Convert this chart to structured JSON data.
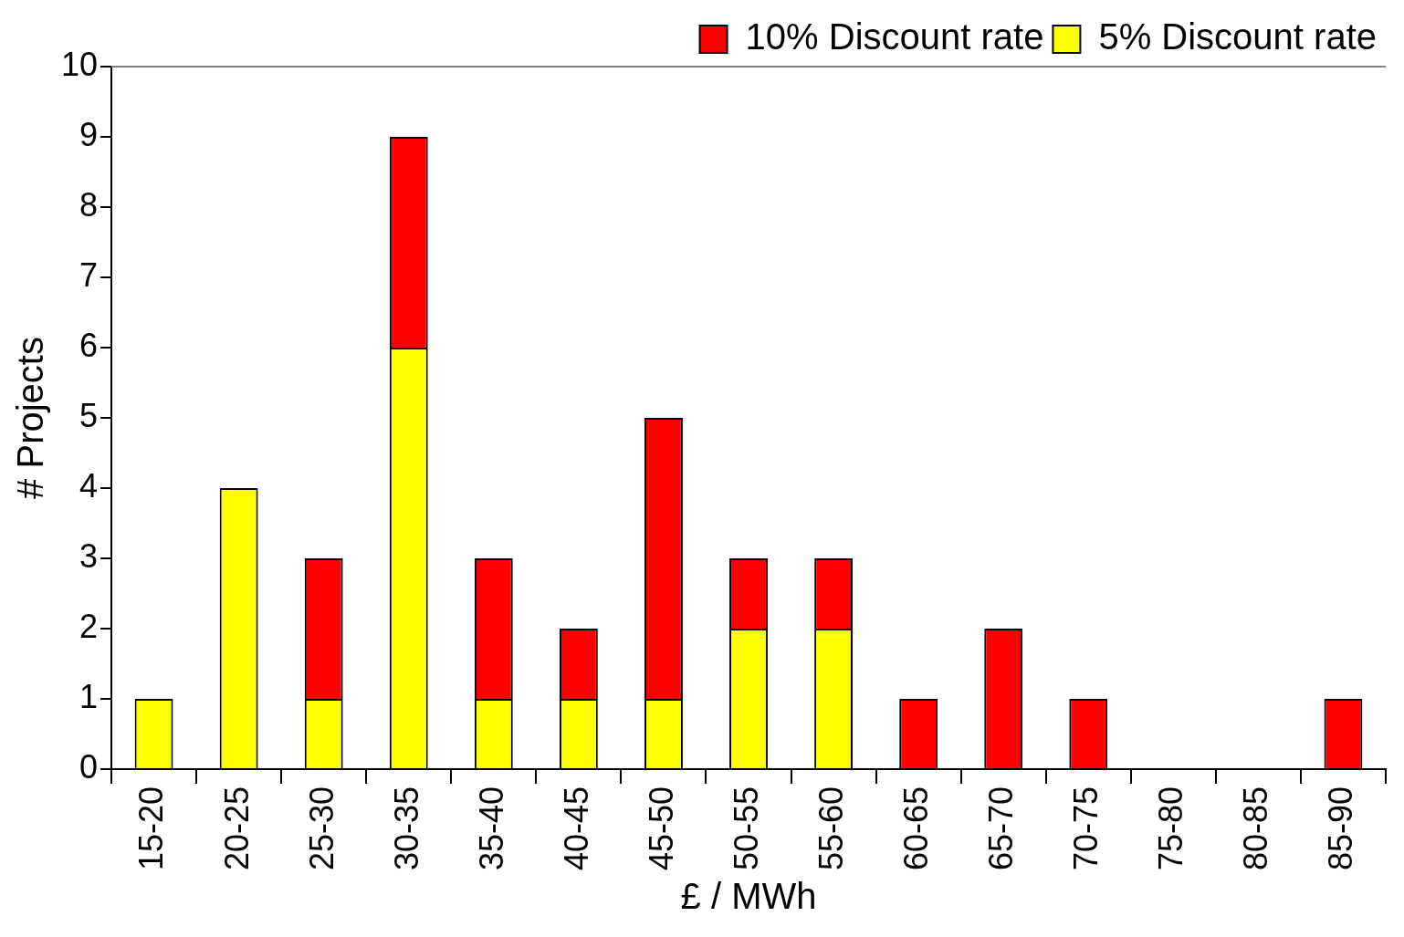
{
  "chart_data": {
    "type": "bar",
    "stacked": true,
    "xlabel": "£ / MWh",
    "ylabel": "# Projects",
    "categories": [
      "15-20",
      "20-25",
      "25-30",
      "30-35",
      "35-40",
      "40-45",
      "45-50",
      "50-55",
      "55-60",
      "60-65",
      "65-70",
      "70-75",
      "75-80",
      "80-85",
      "85-90"
    ],
    "series": [
      {
        "name": "5% Discount rate",
        "color": "#ffff00",
        "values": [
          1,
          4,
          1,
          6,
          1,
          1,
          1,
          2,
          2,
          0,
          0,
          0,
          0,
          0,
          0
        ]
      },
      {
        "name": "10% Discount rate",
        "color": "#ff0000",
        "values": [
          0,
          0,
          2,
          3,
          2,
          1,
          4,
          1,
          1,
          1,
          2,
          1,
          0,
          0,
          1
        ]
      }
    ],
    "ylim": [
      0,
      10
    ],
    "yticks": [
      0,
      1,
      2,
      3,
      4,
      5,
      6,
      7,
      8,
      9,
      10
    ],
    "legend": "top right"
  }
}
